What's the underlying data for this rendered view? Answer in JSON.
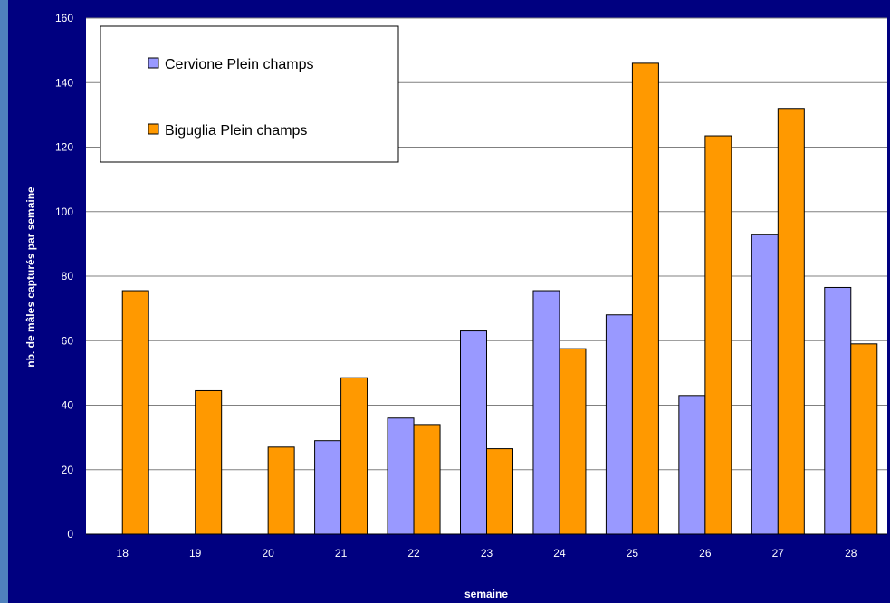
{
  "chart_data": {
    "type": "bar",
    "categories": [
      "18",
      "19",
      "20",
      "21",
      "22",
      "23",
      "24",
      "25",
      "26",
      "27",
      "28"
    ],
    "series": [
      {
        "name": "Cervione Plein champs",
        "color": "#9999ff",
        "values": [
          0,
          0,
          0,
          29,
          36,
          63,
          75.5,
          68,
          43,
          93,
          76.5
        ]
      },
      {
        "name": "Biguglia Plein champs",
        "color": "#ff9900",
        "values": [
          75.5,
          44.5,
          27,
          48.5,
          34,
          26.5,
          57.5,
          146,
          123.5,
          132,
          59
        ]
      }
    ],
    "y_ticks": [
      "0",
      "20",
      "40",
      "60",
      "80",
      "100",
      "120",
      "140",
      "160"
    ],
    "ylim": [
      0,
      160
    ],
    "xlabel": "semaine",
    "ylabel": "nb. de mâles capturés par semaine",
    "grid": true,
    "legend_position": "top-left"
  },
  "colors": {
    "page_background": "#000080",
    "plot_background": "#ffffff",
    "left_strip": "#4f81bd"
  }
}
